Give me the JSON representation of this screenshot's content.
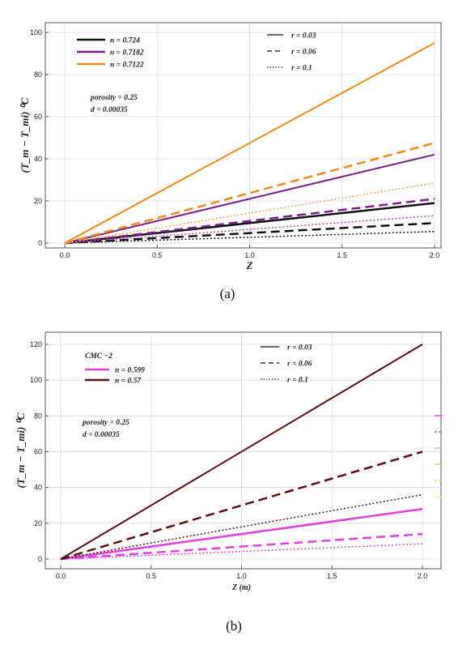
{
  "chart_data": [
    {
      "id": "a",
      "type": "line",
      "caption": "(a)",
      "xlabel": "Z",
      "ylabel": "(T_m − T_mi) ⁰C",
      "xlim": [
        0,
        2
      ],
      "ylim": [
        0,
        100
      ],
      "xticks": [
        "0.0",
        "0.5",
        "1.0",
        "1.5",
        "2.0"
      ],
      "yticks": [
        "0",
        "20",
        "40",
        "60",
        "80",
        "100"
      ],
      "grid": true,
      "annotations": [
        "porosity = 0.25",
        "d = 0.00035"
      ],
      "legend_n": [
        {
          "label": "n = 0.724",
          "color": "#111111"
        },
        {
          "label": "n = 0.7182",
          "color": "#7a1f8a"
        },
        {
          "label": "n = 0.7122",
          "color": "#f08a1c"
        }
      ],
      "legend_r": [
        {
          "label": "r = 0.03",
          "dash": "solid"
        },
        {
          "label": "r = 0.06",
          "dash": "dashed"
        },
        {
          "label": "r = 0.1",
          "dash": "dotted"
        }
      ],
      "series": [
        {
          "n": "0.724",
          "r": "0.03",
          "color": "#111111",
          "dash": "solid",
          "width": 2.5,
          "x": [
            0,
            2
          ],
          "y": [
            0,
            19
          ]
        },
        {
          "n": "0.724",
          "r": "0.06",
          "color": "#111111",
          "dash": "dashed",
          "width": 2.5,
          "x": [
            0,
            2
          ],
          "y": [
            0,
            9.5
          ]
        },
        {
          "n": "0.724",
          "r": "0.1",
          "color": "#111111",
          "dash": "dotted",
          "width": 1.5,
          "x": [
            0,
            2
          ],
          "y": [
            0,
            5.5
          ]
        },
        {
          "n": "0.7182",
          "r": "0.03",
          "color": "#7a1f8a",
          "dash": "solid",
          "width": 2,
          "x": [
            0,
            2
          ],
          "y": [
            0,
            42
          ]
        },
        {
          "n": "0.7182",
          "r": "0.06",
          "color": "#7a1f8a",
          "dash": "dashed",
          "width": 2.5,
          "x": [
            0,
            2
          ],
          "y": [
            0,
            21
          ]
        },
        {
          "n": "0.7182",
          "r": "0.1",
          "color": "#b04ab5",
          "dash": "dotted",
          "width": 1.5,
          "x": [
            0,
            2
          ],
          "y": [
            0,
            13
          ]
        },
        {
          "n": "0.7122",
          "r": "0.03",
          "color": "#f08a1c",
          "dash": "solid",
          "width": 2,
          "x": [
            0,
            2
          ],
          "y": [
            0,
            95
          ]
        },
        {
          "n": "0.7122",
          "r": "0.06",
          "color": "#f08a1c",
          "dash": "dashed",
          "width": 2.5,
          "x": [
            0,
            2
          ],
          "y": [
            0,
            47.5
          ]
        },
        {
          "n": "0.7122",
          "r": "0.1",
          "color": "#f5a24a",
          "dash": "dotted",
          "width": 1.5,
          "x": [
            0,
            2
          ],
          "y": [
            0,
            28.5
          ]
        }
      ]
    },
    {
      "id": "b",
      "type": "line",
      "caption": "(b)",
      "xlabel": "Z (m)",
      "ylabel": "(T_m − T_mi) ⁰C",
      "xlim": [
        0,
        2
      ],
      "ylim": [
        0,
        120
      ],
      "xticks": [
        "0.0",
        "0.5",
        "1.0",
        "1.5",
        "2.0"
      ],
      "yticks": [
        "0",
        "20",
        "40",
        "60",
        "80",
        "100",
        "120"
      ],
      "grid": true,
      "annotations": [
        "porosity = 0.25",
        "d = 0.00035"
      ],
      "legend_title": "CMC −2",
      "legend_n": [
        {
          "label": "n = 0.599",
          "color": "#e040e0"
        },
        {
          "label": "n = 0.57",
          "color": "#5a1010"
        }
      ],
      "legend_r": [
        {
          "label": "r = 0.03",
          "dash": "solid"
        },
        {
          "label": "r = 0.06",
          "dash": "dashed"
        },
        {
          "label": "r = 0.1",
          "dash": "dotted"
        }
      ],
      "series": [
        {
          "n": "0.599",
          "r": "0.03",
          "color": "#e040e0",
          "dash": "solid",
          "width": 2.5,
          "x": [
            0,
            2
          ],
          "y": [
            0,
            28
          ]
        },
        {
          "n": "0.599",
          "r": "0.06",
          "color": "#e040e0",
          "dash": "dashed",
          "width": 2.5,
          "x": [
            0,
            2
          ],
          "y": [
            0,
            14
          ]
        },
        {
          "n": "0.599",
          "r": "0.1",
          "color": "#e040e0",
          "dash": "dotted",
          "width": 1.5,
          "x": [
            0,
            2
          ],
          "y": [
            0,
            8.5
          ]
        },
        {
          "n": "0.57",
          "r": "0.03",
          "color": "#5a1010",
          "dash": "solid",
          "width": 2,
          "x": [
            0,
            2
          ],
          "y": [
            0,
            120
          ]
        },
        {
          "n": "0.57",
          "r": "0.06",
          "color": "#5a1010",
          "dash": "dashed",
          "width": 2.5,
          "x": [
            0,
            2
          ],
          "y": [
            0,
            60
          ]
        },
        {
          "n": "0.57",
          "r": "0.1",
          "color": "#5a1010",
          "dash": "dotted",
          "width": 1.5,
          "x": [
            0,
            2
          ],
          "y": [
            0,
            36
          ]
        }
      ],
      "stray_marks": [
        {
          "color": "#e040e0",
          "dash": "solid"
        },
        {
          "color": "#e040e0",
          "dash": "dashed"
        },
        {
          "color": "#e040e0",
          "dash": "dotted"
        },
        {
          "color": "#e8d840",
          "dash": "solid"
        },
        {
          "color": "#e8d840",
          "dash": "dashed"
        },
        {
          "color": "#e8d840",
          "dash": "dotted"
        }
      ]
    }
  ]
}
